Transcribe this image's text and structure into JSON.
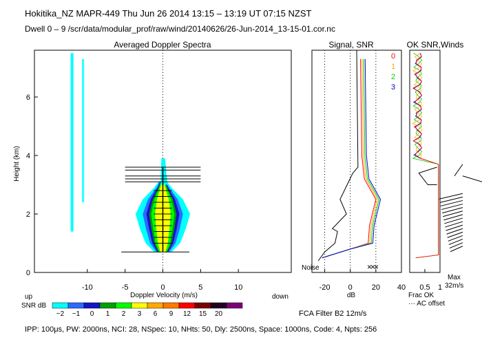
{
  "header": {
    "line1": "Hokitika_NZ  MAPR-449  Thu Jun 26 2014 13:15 – 13:19 UT 07:15 NZST",
    "line2": "Dwell  0 –  9   /scr/data/modular_prof/raw/wind/20140626/26-Jun-2014_13-15-01.cor.nc"
  },
  "footer": {
    "params": "IPP: 100μs,  PW: 2000ns,  NCI:  28,  NSpec: 10, NHts: 50,  Dly: 2500ns,  Space: 1000ns,  Code: 4,  Npts: 256",
    "filter": "FCA Filter B2 12m/s"
  },
  "legend": {
    "up": "up",
    "down": "down",
    "snr_label": "SNR dB",
    "levels": [
      "−2",
      "−1",
      "0",
      "1",
      "2",
      "3",
      "6",
      "9",
      "12",
      "15",
      "20"
    ],
    "colors": [
      "#00ffff",
      "#2b6bff",
      "#1414c8",
      "#00a000",
      "#00ff00",
      "#ffff00",
      "#ffaa00",
      "#ff7a00",
      "#ff0000",
      "#7a0000",
      "#220022",
      "#7a007a"
    ]
  },
  "chart_data": [
    {
      "type": "heatmap",
      "title": "Averaged Doppler Spectra",
      "xlabel": "Doppler Velocity (m/s)",
      "ylabel": "Height (km)",
      "xlim": [
        -17,
        17
      ],
      "ylim": [
        0,
        7.6
      ],
      "xticks": [
        -10,
        -5,
        0,
        5,
        10
      ],
      "yticks": [
        0,
        2,
        4,
        6
      ],
      "zero_line": 0,
      "profile": [
        {
          "h": 0.7,
          "half": 0.6
        },
        {
          "h": 1.0,
          "half": 1.2
        },
        {
          "h": 1.5,
          "half": 1.6
        },
        {
          "h": 2.0,
          "half": 1.9
        },
        {
          "h": 2.5,
          "half": 1.4
        },
        {
          "h": 2.9,
          "half": 0.6
        },
        {
          "h": 3.1,
          "half": 0.3
        }
      ],
      "ticks_heights": [
        0.7,
        1.0,
        1.2,
        1.4,
        1.6,
        1.8,
        2.0,
        2.2,
        2.4,
        2.6,
        2.8,
        3.1,
        3.2,
        3.3,
        3.5,
        3.6
      ],
      "wide_tick_heights": [
        0.7,
        3.1,
        3.2,
        3.3,
        3.5,
        3.6
      ]
    },
    {
      "type": "line",
      "title": "Signal, SNR",
      "xlabel": "dB",
      "xlim": [
        -30,
        40
      ],
      "xticks": [
        -20,
        0,
        20,
        40
      ],
      "ylim": [
        0,
        7.6
      ],
      "noise_label": "Noise",
      "series": [
        {
          "name": "0",
          "color": "#ff0000"
        },
        {
          "name": "1",
          "color": "#ffaa00"
        },
        {
          "name": "2",
          "color": "#00cc00"
        },
        {
          "name": "3",
          "color": "#0000cc"
        }
      ]
    },
    {
      "type": "line",
      "title": "OK SNR,Winds",
      "xlabel": "Frac OK",
      "xticks": [
        "0.5",
        "1"
      ],
      "extra_label": "··· AC offset",
      "max_label": "Max",
      "max_value": "32m/s"
    }
  ]
}
